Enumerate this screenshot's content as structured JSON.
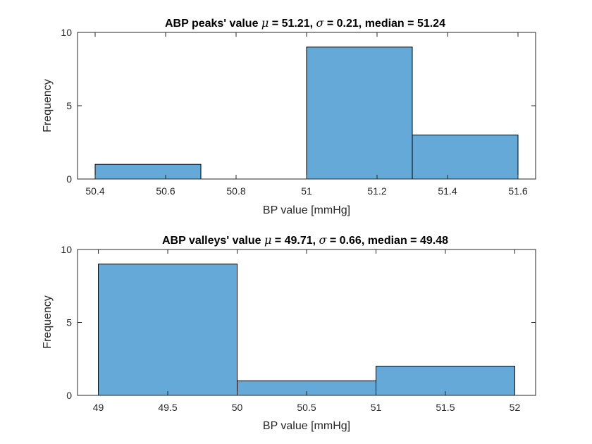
{
  "bar_color": "#64A9D8",
  "chart_data": [
    {
      "type": "bar",
      "title_parts": [
        "ABP peaks' value ",
        "μ",
        " = 51.21, ",
        "σ",
        " = 0.21, median = 51.24"
      ],
      "xlabel": "BP value [mmHg]",
      "ylabel": "Frequency",
      "bin_edges": [
        50.4,
        50.7,
        51.0,
        51.3,
        51.6
      ],
      "values": [
        1,
        0,
        9,
        3
      ],
      "xlim": [
        50.35,
        51.65
      ],
      "ylim": [
        0,
        10
      ],
      "xticks": [
        50.4,
        50.6,
        50.8,
        51,
        51.2,
        51.4,
        51.6
      ],
      "xtick_labels": [
        "50.4",
        "50.6",
        "50.8",
        "51",
        "51.2",
        "51.4",
        "51.6"
      ],
      "yticks": [
        0,
        5,
        10
      ],
      "ytick_labels": [
        "0",
        "5",
        "10"
      ],
      "grid": false
    },
    {
      "type": "bar",
      "title_parts": [
        "ABP valleys' value ",
        "μ",
        " = 49.71, ",
        "σ",
        " = 0.66, median = 49.48"
      ],
      "xlabel": "BP value [mmHg]",
      "ylabel": "Frequency",
      "bin_edges": [
        49,
        50,
        51,
        52
      ],
      "values": [
        9,
        1,
        2
      ],
      "xlim": [
        48.85,
        52.15
      ],
      "ylim": [
        0,
        10
      ],
      "xticks": [
        49,
        49.5,
        50,
        50.5,
        51,
        51.5,
        52
      ],
      "xtick_labels": [
        "49",
        "49.5",
        "50",
        "50.5",
        "51",
        "51.5",
        "52"
      ],
      "yticks": [
        0,
        5,
        10
      ],
      "ytick_labels": [
        "0",
        "5",
        "10"
      ],
      "grid": false
    }
  ]
}
